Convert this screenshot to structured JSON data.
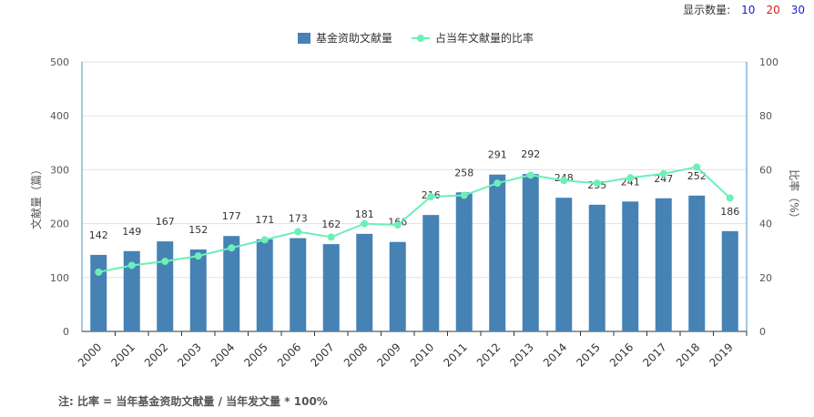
{
  "display": {
    "label": "显示数量:",
    "options": [
      {
        "label": "10",
        "color": "#1a1acc"
      },
      {
        "label": "20",
        "color": "#d61f1f"
      },
      {
        "label": "30",
        "color": "#1a1acc"
      }
    ]
  },
  "note": "注: 比率 = 当年基金资助文献量 / 当年发文量 * 100%",
  "chart_data": {
    "type": "bar",
    "categories": [
      "2000",
      "2001",
      "2002",
      "2003",
      "2004",
      "2005",
      "2006",
      "2007",
      "2008",
      "2009",
      "2010",
      "2011",
      "2012",
      "2013",
      "2014",
      "2015",
      "2016",
      "2017",
      "2018",
      "2019"
    ],
    "series": [
      {
        "name": "基金资助文献量",
        "type": "bar",
        "axis": "left",
        "color": "#4682b4",
        "values": [
          142,
          149,
          167,
          152,
          177,
          171,
          173,
          162,
          181,
          166,
          216,
          258,
          291,
          292,
          248,
          235,
          241,
          247,
          252,
          186
        ]
      },
      {
        "name": "占当年文献量的比率",
        "type": "line",
        "axis": "right",
        "color": "#6cefb8",
        "values": [
          22,
          24.5,
          26,
          28,
          31,
          34,
          37,
          35,
          40,
          39.5,
          50,
          50.5,
          55,
          58,
          56,
          55,
          57,
          58.5,
          61,
          49.5
        ]
      }
    ],
    "ylabel": "文献量（篇）",
    "y2label": "比率（%）",
    "ylim": [
      0,
      500
    ],
    "y2lim": [
      0,
      100
    ],
    "yticks": [
      0,
      100,
      200,
      300,
      400,
      500
    ],
    "y2ticks": [
      0,
      20,
      40,
      60,
      80,
      100
    ],
    "legend": "top-center",
    "grid": true
  }
}
